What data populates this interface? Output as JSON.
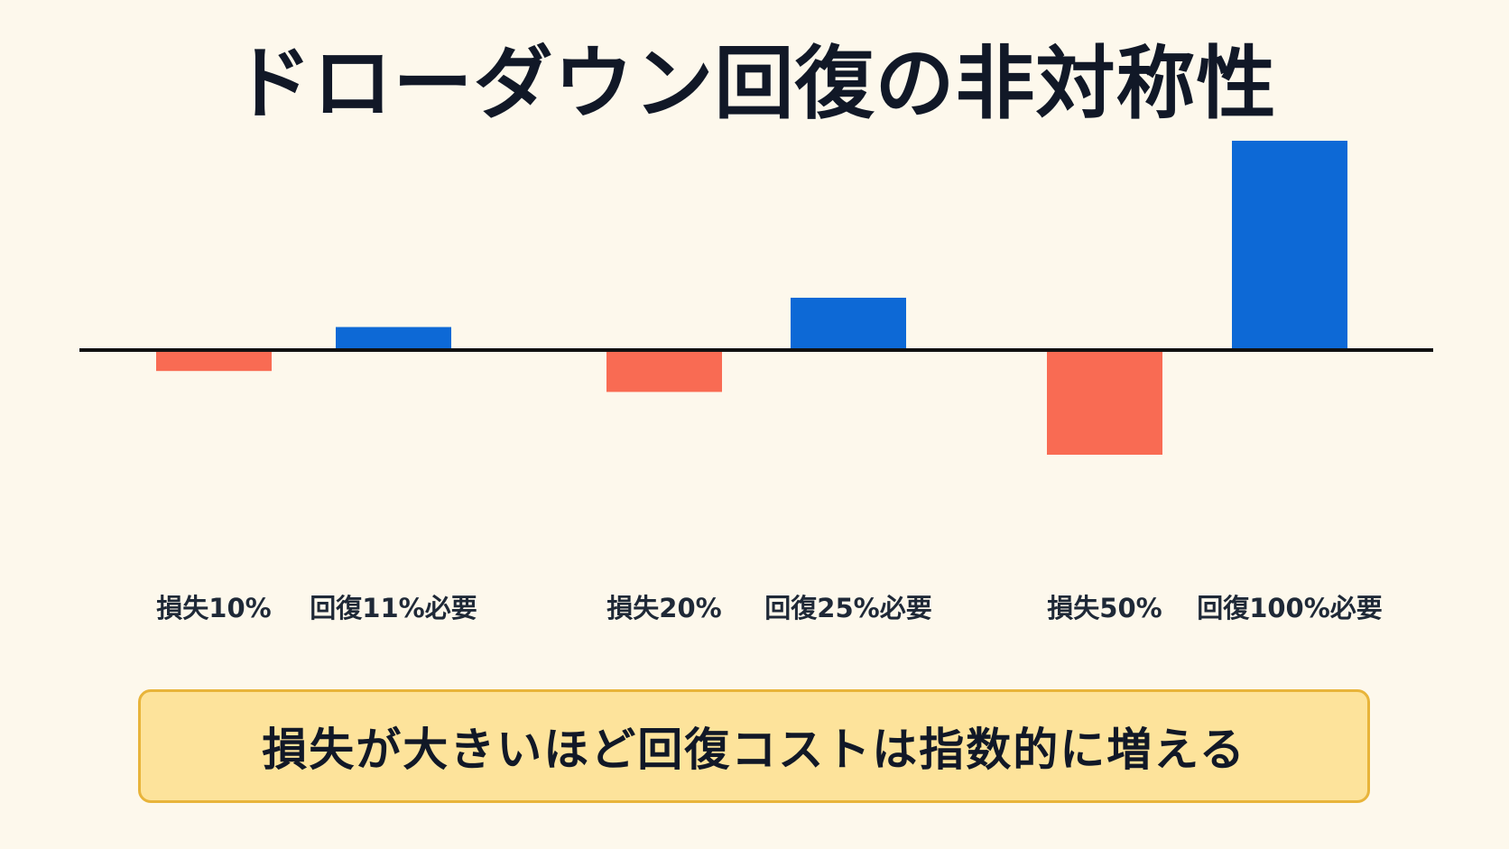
{
  "title": "ドローダウン回復の非対称性",
  "callout": "損失が大きいほど回復コストは指数的に増える",
  "colors": {
    "loss": "#f96b53",
    "recovery": "#0d69d6",
    "axis": "#111111"
  },
  "chart_data": {
    "type": "bar",
    "title": "ドローダウン回復の非対称性",
    "xlabel": "",
    "ylabel": "",
    "ylim": [
      -50,
      100
    ],
    "grid": false,
    "series": [
      {
        "name": "",
        "kind": "loss",
        "values": [
          {
            "label": "損失10%",
            "value": -10
          },
          {
            "label": "損失20%",
            "value": -20
          },
          {
            "label": "損失50%",
            "value": -50
          }
        ]
      },
      {
        "name": "",
        "kind": "recovery",
        "values": [
          {
            "label": "回復11%必要",
            "value": 11
          },
          {
            "label": "回復25%必要",
            "value": 25
          },
          {
            "label": "回復100%必要",
            "value": 100
          }
        ]
      }
    ]
  }
}
